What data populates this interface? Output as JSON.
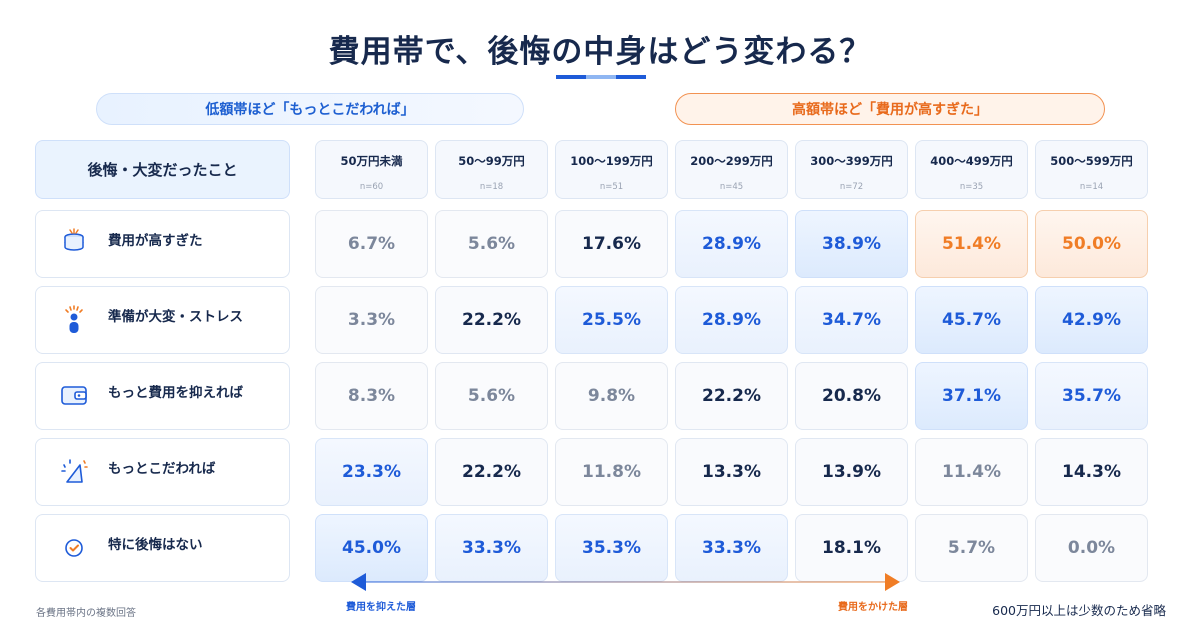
{
  "title": "費用帯で、後悔の中身はどう変わる？",
  "bands": {
    "low": "低額帯ほど「もっとこだわれば」",
    "high": "高額帯ほど「費用が高すぎた」"
  },
  "row_header": "後悔・大変だったこと",
  "footer": {
    "note": "各費用帯内の複数回答",
    "right": "600万円以上は少数のため省略"
  },
  "arrow": {
    "left_label": "費用を抑えた層",
    "right_label": "費用をかけた層"
  },
  "colors": {
    "blue_accent": "#1e5bd8",
    "orange_accent": "#f07d26",
    "navy_text": "#17294d",
    "muted_text": "#7c879b"
  },
  "icons": [
    "coins-icon",
    "stressed-person-icon",
    "wallet-icon",
    "sparkle-triangle-icon",
    "check-circle-icon"
  ],
  "chart_data": {
    "type": "table",
    "title": "費用帯で、後悔の中身はどう変わる？",
    "categories": [
      "50万円未満",
      "50〜99万円",
      "100〜199万円",
      "200〜299万円",
      "300〜399万円",
      "400〜499万円",
      "500〜599万円"
    ],
    "sample_sizes": [
      "n=60",
      "n=18",
      "n=51",
      "n=45",
      "n=72",
      "n=35",
      "n=14"
    ],
    "unit": "%",
    "series": [
      {
        "name": "費用が高すぎた",
        "values": [
          6.7,
          5.6,
          17.6,
          28.9,
          38.9,
          51.4,
          50.0
        ],
        "display": [
          "6.7%",
          "5.6%",
          "17.6%",
          "28.9%",
          "38.9%",
          "51.4%",
          "50.0%"
        ]
      },
      {
        "name": "準備が大変・ストレス",
        "values": [
          3.3,
          22.2,
          25.5,
          28.9,
          34.7,
          45.7,
          42.9
        ],
        "display": [
          "3.3%",
          "22.2%",
          "25.5%",
          "28.9%",
          "34.7%",
          "45.7%",
          "42.9%"
        ]
      },
      {
        "name": "もっと費用を抑えれば",
        "values": [
          8.3,
          5.6,
          9.8,
          22.2,
          20.8,
          37.1,
          35.7
        ],
        "display": [
          "8.3%",
          "5.6%",
          "9.8%",
          "22.2%",
          "20.8%",
          "37.1%",
          "35.7%"
        ]
      },
      {
        "name": "もっとこだわれば",
        "values": [
          23.3,
          22.2,
          11.8,
          13.3,
          13.9,
          11.4,
          14.3
        ],
        "display": [
          "23.3%",
          "22.2%",
          "11.8%",
          "13.3%",
          "13.9%",
          "11.4%",
          "14.3%"
        ]
      },
      {
        "name": "特に後悔はない",
        "values": [
          45.0,
          33.3,
          35.3,
          33.3,
          18.1,
          5.7,
          0.0
        ],
        "display": [
          "45.0%",
          "33.3%",
          "35.3%",
          "33.3%",
          "18.1%",
          "5.7%",
          "0.0%"
        ]
      }
    ]
  }
}
